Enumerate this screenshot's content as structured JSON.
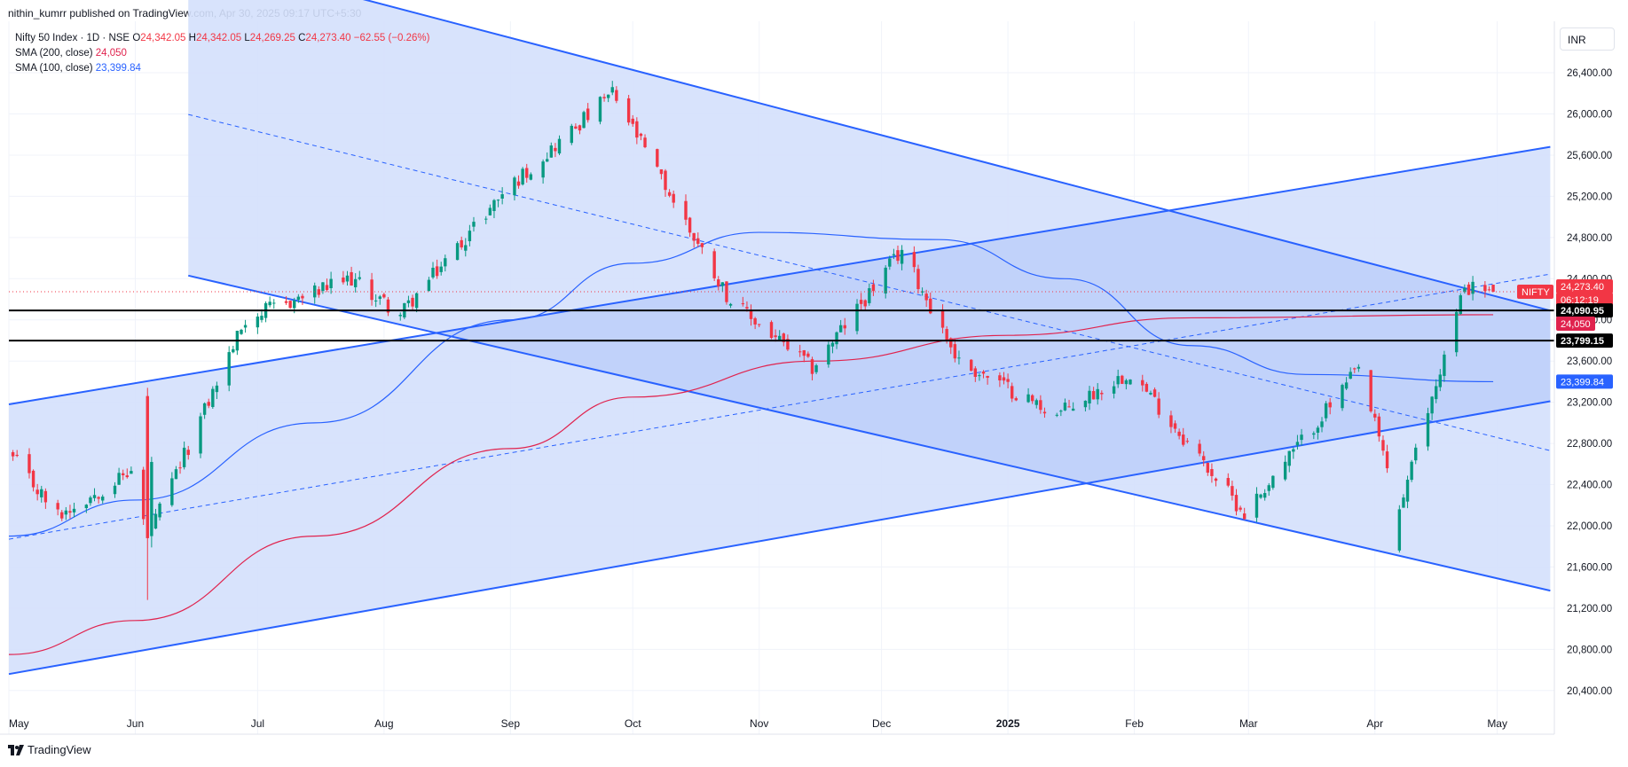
{
  "header": {
    "publisher": "nithin_kumrr published on TradingView.com, Apr 30, 2025 09:17 UTC+5:30"
  },
  "legend": {
    "symbol": "Nifty 50 Index · 1D · NSE",
    "ohlc": {
      "O": "24,342.05",
      "H": "24,342.05",
      "L": "24,269.25",
      "C": "24,273.40",
      "change": "−62.55 (−0.26%)"
    },
    "sma200": {
      "label": "SMA (200, close)",
      "value": "24,050"
    },
    "sma100": {
      "label": "SMA (100, close)",
      "value": "23,399.84"
    }
  },
  "currency": "INR",
  "footer": {
    "brand": "TradingView"
  },
  "colors": {
    "up": "#089981",
    "down": "#f23645",
    "sma200": "#e0234e",
    "sma100": "#2962ff",
    "channel": "#2962ff",
    "fill": "#d4e0fc"
  },
  "chart_data": {
    "type": "candlestick",
    "x_labels": [
      "May",
      "Jun",
      "Jul",
      "Aug",
      "Sep",
      "Oct",
      "Nov",
      "Dec",
      "2025",
      "Feb",
      "Mar",
      "Apr",
      "May"
    ],
    "y_ticks": [
      "26,400.00",
      "26,000.00",
      "25,600.00",
      "25,200.00",
      "24,800.00",
      "24,400.00",
      "24,000.00",
      "23,600.00",
      "23,200.00",
      "22,800.00",
      "22,400.00",
      "22,000.00",
      "21,600.00",
      "21,200.00",
      "20,800.00",
      "20,400.00"
    ],
    "ylim": [
      20200,
      26900
    ],
    "grid": true,
    "price_tags": [
      {
        "text": "NIFTY",
        "value": 24273.4,
        "kind": "symbol"
      },
      {
        "text": "24,273.40",
        "value": 24273.4,
        "kind": "last"
      },
      {
        "text": "06:12:19",
        "value": 24273.4,
        "kind": "countdown"
      },
      {
        "text": "24,090.95",
        "value": 24090.95,
        "kind": "hline"
      },
      {
        "text": "24,050",
        "value": 24050,
        "kind": "sma200"
      },
      {
        "text": "23,799.15",
        "value": 23799.15,
        "kind": "hline"
      },
      {
        "text": "23,399.84",
        "value": 23399.84,
        "kind": "sma100"
      }
    ],
    "horizontal_lines": [
      24090.95,
      23799.15
    ],
    "last_price": 24273.4,
    "anchor_points": [
      {
        "date": "2024-05-02",
        "close": 22650
      },
      {
        "date": "2024-05-13",
        "close": 22100
      },
      {
        "date": "2024-05-31",
        "close": 22530
      },
      {
        "date": "2024-06-04",
        "close": 21880
      },
      {
        "date": "2024-06-28",
        "close": 24010
      },
      {
        "date": "2024-07-24",
        "close": 24400
      },
      {
        "date": "2024-08-05",
        "close": 24050
      },
      {
        "date": "2024-08-30",
        "close": 25230
      },
      {
        "date": "2024-09-26",
        "close": 26200
      },
      {
        "date": "2024-10-25",
        "close": 24180
      },
      {
        "date": "2024-11-14",
        "close": 23530
      },
      {
        "date": "2024-12-06",
        "close": 24680
      },
      {
        "date": "2024-12-20",
        "close": 23590
      },
      {
        "date": "2025-01-13",
        "close": 23080
      },
      {
        "date": "2025-01-31",
        "close": 23500
      },
      {
        "date": "2025-02-28",
        "close": 22120
      },
      {
        "date": "2025-03-28",
        "close": 23520
      },
      {
        "date": "2025-04-07",
        "close": 22160
      },
      {
        "date": "2025-04-23",
        "close": 24330
      },
      {
        "date": "2025-04-30",
        "close": 24273.4
      }
    ]
  }
}
